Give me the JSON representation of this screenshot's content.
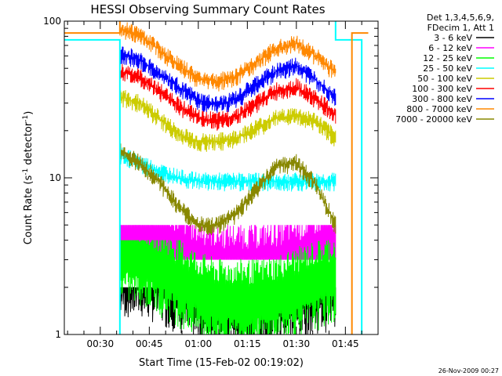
{
  "chart_data": {
    "type": "line",
    "title": "HESSI Observing Summary Count Rates",
    "xlabel": "Start Time (15-Feb-02 00:19:02)",
    "ylabel_prefix": "Count Rate (s",
    "ylabel_sup": "-1",
    "ylabel_suffix": " detector",
    "ylabel_sup2": "-1",
    "ylabel_end": ")",
    "yscale": "log",
    "ylim": [
      1,
      100
    ],
    "xlim": [
      "00:19",
      "01:55"
    ],
    "xlim_minutes": [
      19.0,
      115.0
    ],
    "x_ticks": [
      "00:30",
      "00:45",
      "01:00",
      "01:15",
      "01:30",
      "01:45"
    ],
    "y_ticks": [
      "1",
      "10",
      "100"
    ],
    "legend_header": [
      "Det 1,3,4,5,6,9,",
      "FDecim 1, Att 1"
    ],
    "legend_position": "top-right",
    "footer": "26-Nov-2009 00:27",
    "series": [
      {
        "name": "3 - 6 keV",
        "color": "#000000",
        "values": [
          2.5,
          2.5,
          2.3,
          2.0,
          1.7,
          1.6,
          1.6,
          1.6,
          1.7,
          1.8,
          2.0,
          2.1
        ]
      },
      {
        "name": "6 - 12 keV",
        "color": "#ff00ff",
        "values": [
          4.5,
          4.3,
          3.9,
          3.4,
          2.9,
          2.7,
          2.7,
          2.7,
          2.8,
          3.0,
          3.3,
          3.5
        ]
      },
      {
        "name": "12 - 25 keV",
        "color": "#00ff00",
        "values": [
          3.2,
          3.0,
          2.6,
          2.2,
          1.8,
          1.6,
          1.6,
          1.6,
          1.7,
          1.9,
          2.1,
          2.3
        ]
      },
      {
        "name": "25 - 50 keV",
        "color": "#00ffff",
        "values": [
          14,
          12.5,
          11,
          10,
          9.5,
          9.5,
          9.5,
          9.5,
          9.5,
          9.5,
          9.5,
          9.5
        ]
      },
      {
        "name": "50 - 100 keV",
        "color": "#cccc00",
        "values": [
          33,
          30,
          24,
          19,
          17,
          17,
          18,
          21,
          24,
          25,
          23,
          18
        ]
      },
      {
        "name": "100 - 300 keV",
        "color": "#ff0000",
        "values": [
          48,
          44,
          36,
          29,
          24,
          23,
          25,
          30,
          36,
          38,
          32,
          25
        ]
      },
      {
        "name": "300 - 800 keV",
        "color": "#0000ff",
        "values": [
          62,
          57,
          46,
          38,
          31,
          29,
          32,
          40,
          48,
          52,
          42,
          33
        ]
      },
      {
        "name": "800 - 7000 keV",
        "color": "#ff8800",
        "values": [
          90,
          82,
          66,
          52,
          43,
          41,
          45,
          55,
          67,
          72,
          60,
          47
        ]
      },
      {
        "name": "7000 - 20000 keV",
        "color": "#888800",
        "values": [
          15,
          12.5,
          9.5,
          6.5,
          5.0,
          5.0,
          6.0,
          8.5,
          12,
          12.5,
          9.0,
          5.0
        ]
      }
    ],
    "x_minutes": [
      36,
      42,
      48,
      54,
      60,
      66,
      72,
      78,
      84,
      90,
      96,
      102
    ]
  }
}
